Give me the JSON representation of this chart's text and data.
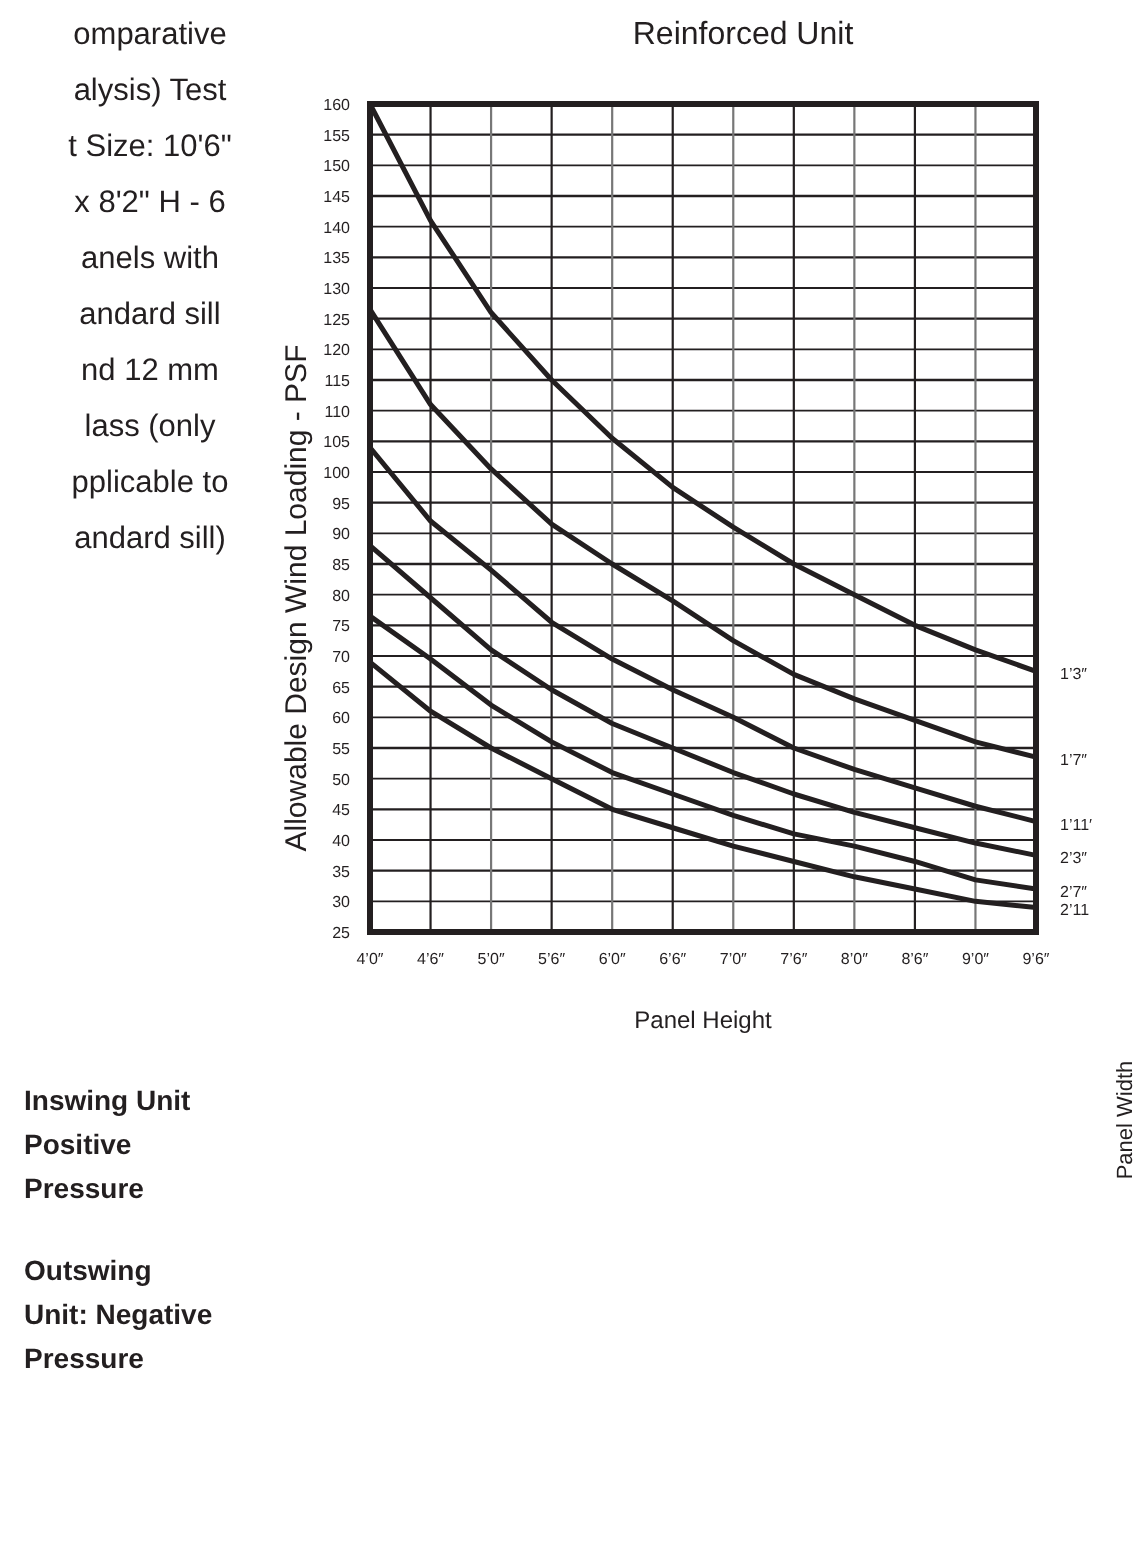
{
  "chart_data": {
    "type": "line",
    "title": "Reinforced Unit",
    "xlabel": "Panel Height",
    "ylabel": "Allowable Design Wind Loading - PSF",
    "categories": [
      "4’0″",
      "4’6″",
      "5’0″",
      "5’6″",
      "6’0″",
      "6’6″",
      "7’0″",
      "7’6″",
      "8’0″",
      "8’6″",
      "9’0″",
      "9’6″"
    ],
    "ylim": [
      25,
      160
    ],
    "yticks": [
      25,
      30,
      35,
      40,
      45,
      50,
      55,
      60,
      65,
      70,
      75,
      80,
      85,
      90,
      95,
      100,
      105,
      110,
      115,
      120,
      125,
      130,
      135,
      140,
      145,
      150,
      155,
      160
    ],
    "grid": true,
    "legend": false,
    "line_style": "solid",
    "series": [
      {
        "name": "1’3″",
        "color": "#231f20",
        "values": [
          160,
          141,
          126,
          115,
          105.5,
          97.5,
          91,
          85,
          80,
          75,
          71,
          67.5
        ]
      },
      {
        "name": "1’7″",
        "color": "#231f20",
        "values": [
          126.5,
          111,
          100.5,
          91.5,
          85,
          79,
          72.5,
          67,
          63,
          59.5,
          56,
          53.5
        ]
      },
      {
        "name": "1’11′",
        "color": "#231f20",
        "values": [
          104,
          92,
          84,
          75.5,
          69.5,
          64.5,
          60,
          55,
          51.5,
          48.5,
          45.5,
          43
        ]
      },
      {
        "name": "2’3″",
        "color": "#231f20",
        "values": [
          88,
          79.5,
          71,
          64.5,
          59,
          55,
          51,
          47.5,
          44.5,
          42,
          39.5,
          37.5
        ]
      },
      {
        "name": "2’7″",
        "color": "#231f20",
        "values": [
          76.5,
          69.5,
          62,
          56,
          51,
          47.5,
          44,
          41,
          39,
          36.5,
          33.5,
          32
        ]
      },
      {
        "name": "2’11",
        "color": "#231f20",
        "values": [
          69,
          61,
          55,
          50,
          45,
          42,
          39,
          36.5,
          34,
          32,
          30,
          29
        ]
      }
    ],
    "annotations": [
      "omparative\nalysis) Test\nt Size: 10'6\"\nx 8'2\" H - 6\nanels with\nandard sill\nnd 12 mm\nlass (only\npplicable to\nandard sill)",
      "Inswing Unit\nPositive\nPressure",
      "Outswing\nUnit: Negative\nPressure",
      "Panel Width"
    ]
  }
}
